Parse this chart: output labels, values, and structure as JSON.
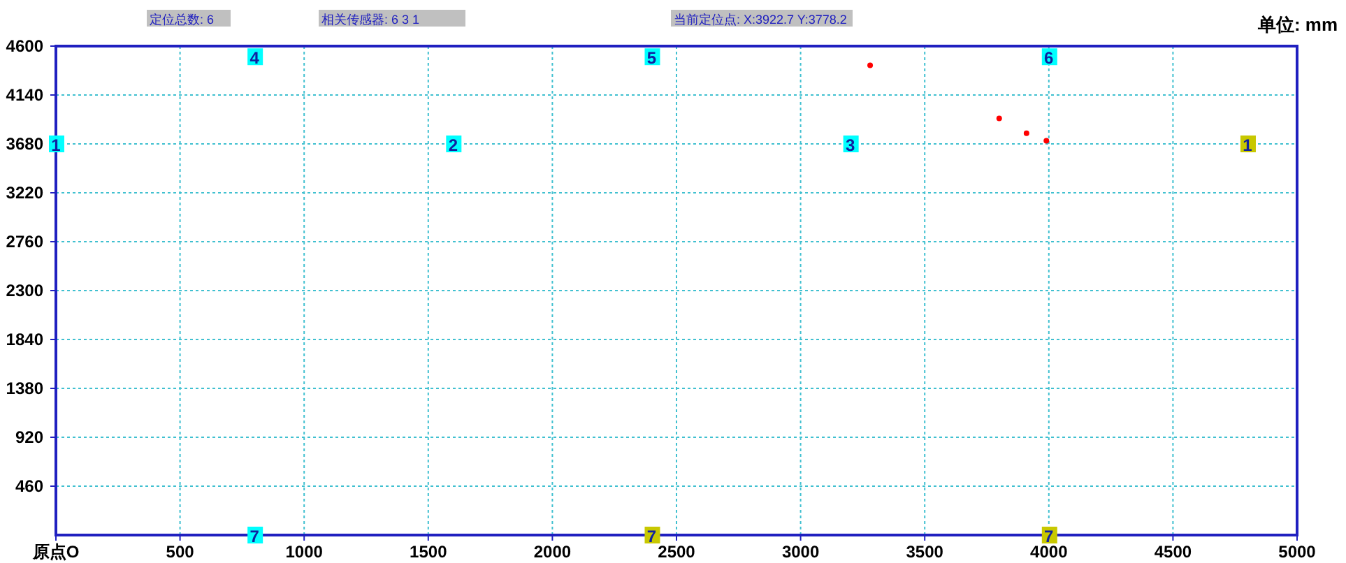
{
  "chart_data": {
    "type": "scatter",
    "xlim": [
      0,
      5000
    ],
    "ylim": [
      0,
      4600
    ],
    "xticks": [
      {
        "value": 0,
        "label": "原点O"
      },
      500,
      1000,
      1500,
      2000,
      2500,
      3000,
      3500,
      4000,
      4500,
      5000
    ],
    "yticks": [
      460,
      920,
      1380,
      1840,
      2300,
      2760,
      3220,
      3680,
      4140,
      4600
    ],
    "grid": true,
    "marker": "square",
    "annotations": [
      "定位总数: 6",
      "相关传感器: 6 3 1",
      "当前定位点: X:3922.7  Y:3778.2",
      "单位: mm",
      {
        "text": "1",
        "x": 0,
        "y": 3680
      },
      {
        "text": "2",
        "x": 1600,
        "y": 3680
      },
      {
        "text": "3",
        "x": 3200,
        "y": 3680
      },
      {
        "text": "4",
        "x": 800,
        "y": 4500
      },
      {
        "text": "5",
        "x": 2400,
        "y": 4500
      },
      {
        "text": "6",
        "x": 4000,
        "y": 4500
      },
      {
        "text": "7",
        "x": 800,
        "y": 0
      },
      {
        "text": "1",
        "x": 4800,
        "y": 3680
      },
      {
        "text": "7",
        "x": 2400,
        "y": 0
      },
      {
        "text": "7",
        "x": 4000,
        "y": 0
      }
    ],
    "series": [
      {
        "color": "#00ffff",
        "x": [
          0,
          1600,
          3200,
          800,
          2400,
          4000,
          800
        ],
        "values": [
          3680,
          3680,
          3680,
          4500,
          4500,
          4500,
          0
        ]
      },
      {
        "color": "#c8c800",
        "x": [
          4800,
          2400,
          4000
        ],
        "values": [
          3680,
          0,
          0
        ]
      },
      {
        "color": "#ff0000",
        "marker": "circle",
        "x": [
          3280,
          3800,
          3910,
          3990
        ],
        "values": [
          4420,
          3920,
          3780,
          3710
        ]
      }
    ]
  }
}
